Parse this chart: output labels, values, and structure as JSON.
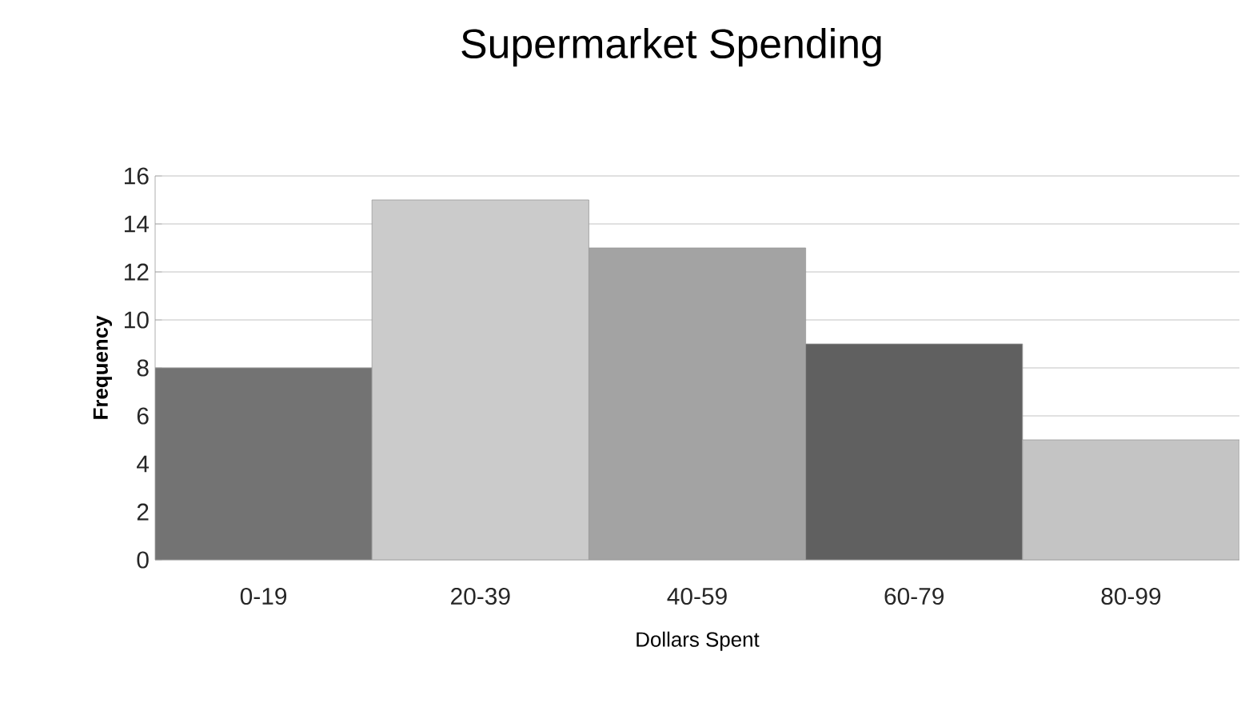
{
  "chart_data": {
    "type": "bar",
    "title": "Supermarket Spending",
    "xlabel": "Dollars Spent",
    "ylabel": "Frequency",
    "categories": [
      "0-19",
      "20-39",
      "40-59",
      "60-79",
      "80-99"
    ],
    "values": [
      8,
      15,
      13,
      9,
      5
    ],
    "colors": [
      "#737373",
      "#cbcbcb",
      "#a3a3a3",
      "#606060",
      "#c4c4c4"
    ],
    "ylim": [
      0,
      16
    ],
    "yticks": [
      0,
      2,
      4,
      6,
      8,
      10,
      12,
      14,
      16
    ],
    "grid": "y"
  }
}
